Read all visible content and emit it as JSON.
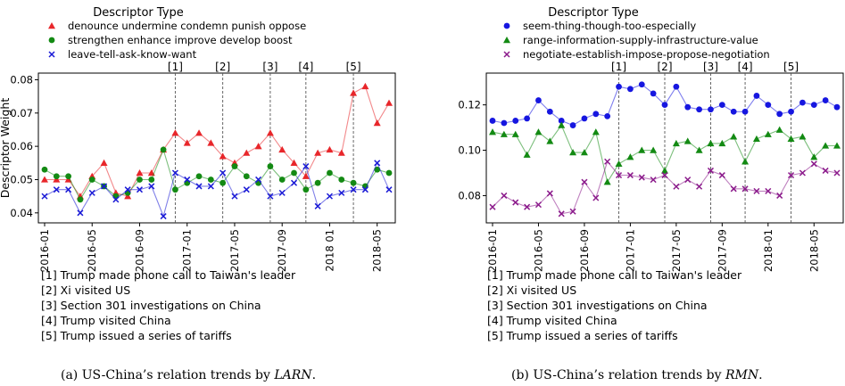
{
  "chart_data": [
    {
      "type": "line",
      "caption_prefix": "(a) US-China’s relation trends by ",
      "caption_method": "LARN",
      "caption_suffix": ".",
      "ylabel": "Descriptor Weight",
      "legend_title": "Descriptor Type",
      "ylim": [
        0.037,
        0.082
      ],
      "yticks": [
        "0.04",
        "0.05",
        "0.06",
        "0.07",
        "0.08"
      ],
      "ytick_values": [
        0.04,
        0.05,
        0.06,
        0.07,
        0.08
      ],
      "x_start": "2016-01",
      "xticks": [
        "2016-01",
        "2016-05",
        "2016-09",
        "2017-01",
        "2017-05",
        "2017-09",
        "2018 01",
        "2018-05"
      ],
      "xtick_index": [
        0,
        4,
        8,
        12,
        16,
        20,
        24,
        28
      ],
      "events": [
        {
          "label": "[1]",
          "index": 11
        },
        {
          "label": "[2]",
          "index": 15
        },
        {
          "label": "[3]",
          "index": 19
        },
        {
          "label": "[4]",
          "index": 22
        },
        {
          "label": "[5]",
          "index": 26
        }
      ],
      "series": [
        {
          "name": "denounce undermine condemn punish oppose",
          "color": "#e8262a",
          "marker": "triangle",
          "values": [
            0.05,
            0.05,
            0.05,
            0.045,
            0.051,
            0.055,
            0.046,
            0.045,
            0.052,
            0.052,
            0.059,
            0.064,
            0.061,
            0.064,
            0.061,
            0.057,
            0.055,
            0.058,
            0.06,
            0.064,
            0.059,
            0.055,
            0.051,
            0.058,
            0.059,
            0.058,
            0.076,
            0.078,
            0.067,
            0.073
          ]
        },
        {
          "name": "strengthen enhance improve develop boost",
          "color": "#138a13",
          "marker": "circle",
          "values": [
            0.053,
            0.051,
            0.051,
            0.044,
            0.05,
            0.048,
            0.045,
            0.046,
            0.05,
            0.05,
            0.059,
            0.047,
            0.049,
            0.051,
            0.05,
            0.049,
            0.054,
            0.051,
            0.049,
            0.054,
            0.05,
            0.052,
            0.047,
            0.049,
            0.052,
            0.05,
            0.049,
            0.048,
            0.053,
            0.052
          ]
        },
        {
          "name": "leave-tell-ask-know-want",
          "color": "#1a1ad6",
          "marker": "x",
          "values": [
            0.045,
            0.047,
            0.047,
            0.04,
            0.046,
            0.048,
            0.044,
            0.047,
            0.047,
            0.048,
            0.039,
            0.052,
            0.05,
            0.048,
            0.048,
            0.052,
            0.045,
            0.047,
            0.05,
            0.045,
            0.046,
            0.049,
            0.054,
            0.042,
            0.045,
            0.046,
            0.047,
            0.047,
            0.055,
            0.047
          ]
        }
      ],
      "notes": [
        "[1] Trump made phone call to Taiwan's leader",
        "[2] Xi visited US",
        "[3] Section 301 investigations on China",
        "[4] Trump visited China",
        "[5] Trump issued a series of tariffs"
      ]
    },
    {
      "type": "line",
      "caption_prefix": "(b) US-China’s relation trends by ",
      "caption_method": "RMN",
      "caption_suffix": ".",
      "ylabel": "",
      "legend_title": "Descriptor Type",
      "ylim": [
        0.068,
        0.134
      ],
      "yticks": [
        "0.08",
        "0.10",
        "0.12"
      ],
      "ytick_values": [
        0.08,
        0.1,
        0.12
      ],
      "x_start": "2016-01",
      "xticks": [
        "2016-01",
        "2016-05",
        "2016-09",
        "2017-01",
        "2017-05",
        "2017-09",
        "2018-01",
        "2018-05"
      ],
      "xtick_index": [
        0,
        4,
        8,
        12,
        16,
        20,
        24,
        28
      ],
      "events": [
        {
          "label": "[1]",
          "index": 11
        },
        {
          "label": "[2]",
          "index": 15
        },
        {
          "label": "[3]",
          "index": 19
        },
        {
          "label": "[4]",
          "index": 22
        },
        {
          "label": "[5]",
          "index": 26
        }
      ],
      "series": [
        {
          "name": "seem-thing-though-too-especially",
          "color": "#1616e0",
          "marker": "circle",
          "values": [
            0.113,
            0.112,
            0.113,
            0.114,
            0.122,
            0.117,
            0.113,
            0.111,
            0.114,
            0.116,
            0.115,
            0.128,
            0.127,
            0.129,
            0.125,
            0.12,
            0.128,
            0.119,
            0.118,
            0.118,
            0.12,
            0.117,
            0.117,
            0.124,
            0.12,
            0.116,
            0.117,
            0.121,
            0.12,
            0.122,
            0.119
          ]
        },
        {
          "name": "range-information-supply-infrastructure-value",
          "color": "#138a13",
          "marker": "triangle",
          "values": [
            0.108,
            0.107,
            0.107,
            0.098,
            0.108,
            0.104,
            0.111,
            0.099,
            0.099,
            0.108,
            0.086,
            0.094,
            0.097,
            0.1,
            0.1,
            0.091,
            0.103,
            0.104,
            0.1,
            0.103,
            0.103,
            0.106,
            0.095,
            0.105,
            0.107,
            0.109,
            0.105,
            0.106,
            0.097,
            0.102,
            0.102
          ]
        },
        {
          "name": "negotiate-establish-impose-propose-negotiation",
          "color": "#8b1a8b",
          "marker": "x",
          "values": [
            0.075,
            0.08,
            0.077,
            0.075,
            0.076,
            0.081,
            0.072,
            0.073,
            0.086,
            0.079,
            0.095,
            0.089,
            0.089,
            0.088,
            0.087,
            0.089,
            0.084,
            0.087,
            0.084,
            0.091,
            0.089,
            0.083,
            0.083,
            0.082,
            0.082,
            0.08,
            0.089,
            0.09,
            0.094,
            0.091,
            0.09
          ]
        }
      ],
      "notes": [
        "[1] Trump made phone call to Taiwan's leader",
        "[2] Xi visited US",
        "[3] Section 301 investigations on China",
        "[4] Trump visited China",
        "[5] Trump issued a series of tariffs"
      ]
    }
  ]
}
